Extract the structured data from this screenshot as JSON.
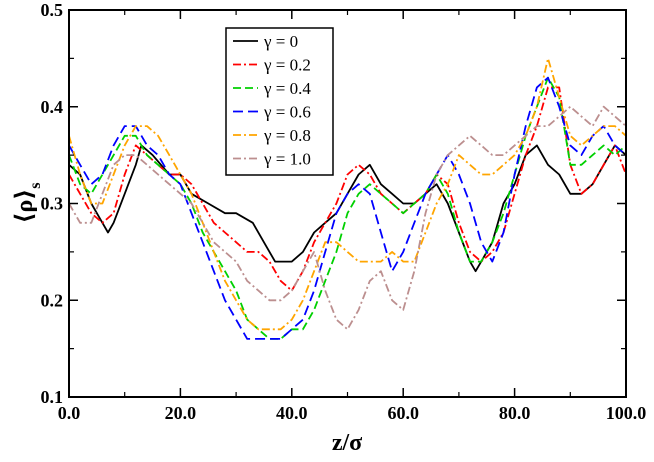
{
  "chart_data": {
    "type": "line",
    "xlabel": "z/σ",
    "ylabel": "⟨ρ⟩",
    "ylabel_sub": "s",
    "xlim": [
      0,
      100
    ],
    "ylim": [
      0.1,
      0.5
    ],
    "xticks": [
      0,
      20,
      40,
      60,
      80,
      100
    ],
    "xtick_labels": [
      "0.0",
      "20.0",
      "40.0",
      "60.0",
      "80.0",
      "100.0"
    ],
    "yticks": [
      0.1,
      0.2,
      0.3,
      0.4,
      0.5
    ],
    "ytick_labels": [
      "0.1",
      "0.2",
      "0.3",
      "0.4",
      "0.5"
    ],
    "legend_position": "upper-left-center",
    "series": [
      {
        "name": "γ = 0",
        "color": "#000000",
        "dash": "solid",
        "x": [
          0,
          2,
          4,
          6,
          7,
          8,
          10,
          12,
          13,
          15,
          18,
          20,
          22,
          25,
          28,
          30,
          33,
          35,
          37,
          38,
          40,
          42,
          44,
          46,
          48,
          50,
          52,
          54,
          56,
          58,
          60,
          62,
          64,
          66,
          68,
          70,
          72,
          73,
          74,
          76,
          78,
          80,
          82,
          84,
          86,
          88,
          90,
          92,
          94,
          96,
          98,
          100
        ],
        "y": [
          0.34,
          0.33,
          0.3,
          0.28,
          0.27,
          0.28,
          0.31,
          0.34,
          0.36,
          0.35,
          0.33,
          0.33,
          0.31,
          0.3,
          0.29,
          0.29,
          0.28,
          0.26,
          0.24,
          0.24,
          0.24,
          0.25,
          0.27,
          0.28,
          0.29,
          0.31,
          0.33,
          0.34,
          0.32,
          0.31,
          0.3,
          0.3,
          0.31,
          0.32,
          0.3,
          0.27,
          0.24,
          0.23,
          0.24,
          0.26,
          0.3,
          0.32,
          0.35,
          0.36,
          0.34,
          0.33,
          0.31,
          0.31,
          0.32,
          0.34,
          0.36,
          0.35
        ]
      },
      {
        "name": "γ = 0.2",
        "color": "#ff0000",
        "dash": "dashdot",
        "x": [
          0,
          2,
          4,
          6,
          8,
          10,
          12,
          14,
          16,
          18,
          20,
          22,
          24,
          26,
          28,
          30,
          32,
          34,
          36,
          38,
          40,
          42,
          44,
          46,
          48,
          50,
          52,
          54,
          56,
          58,
          60,
          62,
          64,
          66,
          68,
          70,
          72,
          74,
          76,
          78,
          80,
          82,
          84,
          86,
          88,
          90,
          92,
          94,
          96,
          98,
          100
        ],
        "y": [
          0.33,
          0.31,
          0.29,
          0.28,
          0.29,
          0.33,
          0.36,
          0.35,
          0.34,
          0.33,
          0.33,
          0.32,
          0.3,
          0.28,
          0.27,
          0.26,
          0.25,
          0.25,
          0.24,
          0.22,
          0.21,
          0.23,
          0.26,
          0.28,
          0.3,
          0.33,
          0.34,
          0.33,
          0.31,
          0.3,
          0.29,
          0.3,
          0.31,
          0.33,
          0.32,
          0.28,
          0.25,
          0.24,
          0.25,
          0.27,
          0.31,
          0.35,
          0.38,
          0.42,
          0.42,
          0.34,
          0.31,
          0.32,
          0.34,
          0.36,
          0.33
        ]
      },
      {
        "name": "γ = 0.4",
        "color": "#00d000",
        "dash": "dashed",
        "x": [
          0,
          2,
          4,
          6,
          8,
          10,
          12,
          14,
          16,
          18,
          20,
          22,
          24,
          26,
          28,
          30,
          32,
          34,
          36,
          38,
          40,
          42,
          44,
          46,
          48,
          50,
          52,
          54,
          56,
          58,
          60,
          62,
          64,
          66,
          68,
          70,
          72,
          74,
          76,
          78,
          80,
          82,
          84,
          86,
          88,
          90,
          92,
          94,
          96,
          98,
          100
        ],
        "y": [
          0.35,
          0.32,
          0.31,
          0.33,
          0.35,
          0.37,
          0.37,
          0.35,
          0.34,
          0.33,
          0.32,
          0.3,
          0.27,
          0.25,
          0.23,
          0.21,
          0.18,
          0.17,
          0.16,
          0.16,
          0.17,
          0.17,
          0.19,
          0.22,
          0.25,
          0.29,
          0.31,
          0.32,
          0.31,
          0.3,
          0.29,
          0.3,
          0.31,
          0.33,
          0.31,
          0.27,
          0.24,
          0.24,
          0.26,
          0.29,
          0.33,
          0.37,
          0.4,
          0.43,
          0.41,
          0.34,
          0.34,
          0.35,
          0.36,
          0.35,
          0.36
        ]
      },
      {
        "name": "γ = 0.6",
        "color": "#0000ff",
        "dash": "longdash",
        "x": [
          0,
          2,
          4,
          6,
          8,
          10,
          12,
          14,
          16,
          18,
          20,
          22,
          24,
          26,
          28,
          30,
          32,
          34,
          36,
          38,
          40,
          42,
          44,
          46,
          48,
          50,
          52,
          54,
          56,
          58,
          60,
          62,
          64,
          66,
          68,
          70,
          72,
          74,
          76,
          78,
          80,
          82,
          84,
          86,
          88,
          90,
          92,
          94,
          96,
          98,
          100
        ],
        "y": [
          0.36,
          0.34,
          0.32,
          0.33,
          0.36,
          0.38,
          0.38,
          0.36,
          0.35,
          0.33,
          0.32,
          0.29,
          0.26,
          0.23,
          0.2,
          0.18,
          0.16,
          0.16,
          0.16,
          0.16,
          0.17,
          0.18,
          0.21,
          0.25,
          0.29,
          0.31,
          0.32,
          0.31,
          0.27,
          0.23,
          0.25,
          0.28,
          0.31,
          0.33,
          0.35,
          0.33,
          0.3,
          0.26,
          0.24,
          0.27,
          0.33,
          0.38,
          0.42,
          0.43,
          0.4,
          0.36,
          0.35,
          0.37,
          0.38,
          0.36,
          0.35
        ]
      },
      {
        "name": "γ = 0.8",
        "color": "#ffa500",
        "dash": "dashdot",
        "x": [
          0,
          2,
          4,
          6,
          8,
          10,
          12,
          14,
          16,
          18,
          20,
          22,
          24,
          26,
          28,
          30,
          32,
          34,
          36,
          38,
          40,
          42,
          44,
          46,
          48,
          50,
          52,
          54,
          56,
          58,
          60,
          62,
          64,
          66,
          68,
          70,
          72,
          74,
          76,
          78,
          80,
          82,
          84,
          86,
          88,
          90,
          92,
          94,
          96,
          98,
          100
        ],
        "y": [
          0.37,
          0.33,
          0.3,
          0.3,
          0.33,
          0.36,
          0.38,
          0.38,
          0.37,
          0.35,
          0.33,
          0.31,
          0.28,
          0.25,
          0.22,
          0.2,
          0.18,
          0.17,
          0.17,
          0.17,
          0.18,
          0.2,
          0.23,
          0.26,
          0.26,
          0.25,
          0.24,
          0.24,
          0.24,
          0.25,
          0.24,
          0.24,
          0.27,
          0.3,
          0.32,
          0.35,
          0.34,
          0.33,
          0.33,
          0.34,
          0.35,
          0.37,
          0.4,
          0.45,
          0.41,
          0.37,
          0.36,
          0.37,
          0.38,
          0.38,
          0.37
        ]
      },
      {
        "name": "γ = 1.0",
        "color": "#bc8f8f",
        "dash": "dashdot",
        "x": [
          0,
          2,
          4,
          6,
          8,
          10,
          12,
          14,
          16,
          18,
          20,
          22,
          24,
          26,
          28,
          30,
          32,
          34,
          36,
          38,
          40,
          42,
          44,
          46,
          48,
          50,
          52,
          54,
          56,
          58,
          60,
          62,
          64,
          66,
          68,
          70,
          72,
          74,
          76,
          78,
          80,
          82,
          84,
          86,
          88,
          90,
          92,
          94,
          96,
          98,
          100
        ],
        "y": [
          0.3,
          0.28,
          0.28,
          0.31,
          0.34,
          0.35,
          0.35,
          0.34,
          0.33,
          0.32,
          0.31,
          0.3,
          0.28,
          0.26,
          0.25,
          0.24,
          0.22,
          0.21,
          0.2,
          0.2,
          0.21,
          0.23,
          0.25,
          0.21,
          0.18,
          0.17,
          0.19,
          0.22,
          0.23,
          0.2,
          0.19,
          0.23,
          0.29,
          0.33,
          0.35,
          0.36,
          0.37,
          0.36,
          0.35,
          0.35,
          0.36,
          0.37,
          0.38,
          0.38,
          0.39,
          0.4,
          0.39,
          0.38,
          0.4,
          0.39,
          0.38
        ]
      }
    ]
  }
}
